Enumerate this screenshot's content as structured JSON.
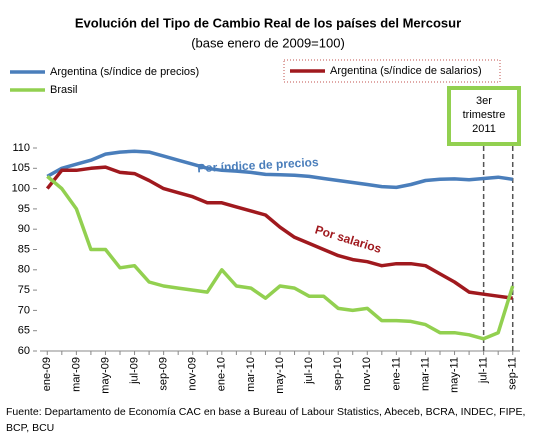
{
  "chart_data": {
    "type": "line",
    "title": "Evolución del Tipo de Cambio Real de los países del Mercosur",
    "subtitle": "(base enero de 2009=100)",
    "categories": [
      "ene-09",
      null,
      "mar-09",
      null,
      "may-09",
      null,
      "jul-09",
      null,
      "sep-09",
      null,
      "nov-09",
      null,
      "ene-10",
      null,
      "mar-10",
      null,
      "may-10",
      null,
      "jul-10",
      null,
      "sep-10",
      null,
      "nov-10",
      null,
      "ene-11",
      null,
      "mar-11",
      null,
      "may-11",
      null,
      "jul-11",
      null,
      "sep-11"
    ],
    "series": [
      {
        "name": "Argentina (s/índice de precios)",
        "color": "#4a7ebb",
        "values": [
          103,
          105,
          106,
          107,
          108.5,
          109,
          109.2,
          109,
          108,
          107,
          106,
          105,
          104.5,
          104.3,
          104,
          103.5,
          103.4,
          103.3,
          103,
          102.5,
          102,
          101.5,
          101,
          100.5,
          100.3,
          101,
          102,
          102.3,
          102.4,
          102.2,
          102.5,
          102.8,
          102.3
        ]
      },
      {
        "name": "Argentina (s/índice de salarios)",
        "color": "#a0191e",
        "values": [
          100,
          104.5,
          104.5,
          105,
          105.3,
          104,
          103.7,
          102,
          100,
          99,
          98,
          96.5,
          96.5,
          95.5,
          94.5,
          93.5,
          90.5,
          88,
          86.5,
          85,
          83.5,
          82.5,
          82,
          81,
          81.5,
          81.5,
          81,
          79,
          77,
          74.5,
          74,
          73.5,
          73
        ]
      },
      {
        "name": "Brasil",
        "color": "#92d050",
        "values": [
          103,
          100,
          95,
          85,
          85,
          80.5,
          81,
          77,
          76,
          75.5,
          75,
          74.5,
          80,
          76,
          75.5,
          73,
          76,
          75.5,
          73.5,
          73.5,
          70.5,
          70,
          70.5,
          67.5,
          67.5,
          67.3,
          66.5,
          64.5,
          64.5,
          64,
          63,
          64.5,
          76
        ]
      }
    ],
    "ylim": [
      60,
      110
    ],
    "yticks": [
      60,
      65,
      70,
      75,
      80,
      85,
      90,
      95,
      100,
      105,
      110
    ],
    "annotations": [
      "Por índice de precios",
      "Por salarios"
    ],
    "highlight": [
      "3er",
      "trimestre",
      "2011"
    ],
    "source": [
      "Fuente: Departamento de Economía CAC en base a  Bureau of Labour Statistics, Abeceb, BCRA, INDEC, FIPE,",
      "BCP, BCU"
    ]
  }
}
